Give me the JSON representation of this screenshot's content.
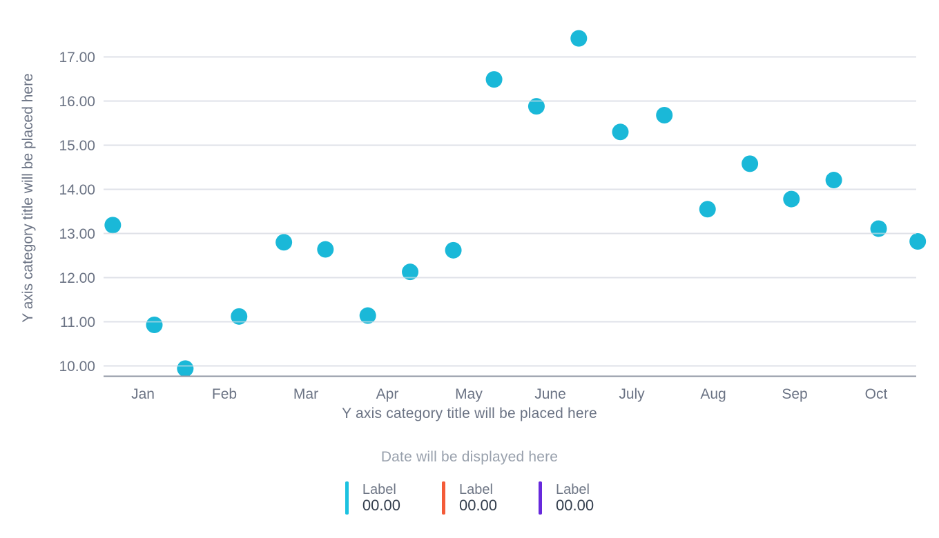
{
  "page": {
    "background": "#ffffff"
  },
  "chart_data": {
    "type": "scatter",
    "title": "",
    "x_axis": {
      "title": "Y axis category title will be placed here",
      "categories": [
        "Jan",
        "Feb",
        "Mar",
        "Apr",
        "May",
        "June",
        "July",
        "Aug",
        "Sep",
        "Oct"
      ],
      "grid": false
    },
    "y_axis": {
      "title": "Y axis category title will be placed here",
      "tick_values": [
        10,
        11,
        12,
        13,
        14,
        15,
        16,
        17
      ],
      "tick_labels": [
        "10.00",
        "11.00",
        "12.00",
        "13.00",
        "14.00",
        "15.00",
        "16.00",
        "17.00"
      ],
      "ylim": [
        9.75,
        17.65
      ],
      "grid": true
    },
    "series": [
      {
        "name": "Label",
        "color": "#1ab8d8",
        "points": [
          {
            "x": 0.63,
            "y": 13.19
          },
          {
            "x": 1.14,
            "y": 10.93
          },
          {
            "x": 1.52,
            "y": 9.94
          },
          {
            "x": 2.18,
            "y": 11.12
          },
          {
            "x": 2.73,
            "y": 12.8
          },
          {
            "x": 3.24,
            "y": 12.64
          },
          {
            "x": 3.76,
            "y": 11.14
          },
          {
            "x": 4.28,
            "y": 12.13
          },
          {
            "x": 4.81,
            "y": 12.62
          },
          {
            "x": 5.31,
            "y": 16.49
          },
          {
            "x": 5.83,
            "y": 15.88
          },
          {
            "x": 6.35,
            "y": 17.42
          },
          {
            "x": 6.86,
            "y": 15.3
          },
          {
            "x": 7.4,
            "y": 15.68
          },
          {
            "x": 7.93,
            "y": 13.55
          },
          {
            "x": 8.45,
            "y": 14.58
          },
          {
            "x": 8.96,
            "y": 13.78
          },
          {
            "x": 9.48,
            "y": 14.21
          },
          {
            "x": 10.03,
            "y": 13.11
          },
          {
            "x": 10.51,
            "y": 12.82
          }
        ]
      }
    ],
    "colors": {
      "point": "#1ab8d8",
      "gridline": "#dfe2e8",
      "axis_line": "#8f96a3",
      "tick_text": "#6b7384",
      "axis_title_text": "#6b7384"
    },
    "legend_position": "bottom"
  },
  "footer": {
    "date_text": "Date will be displayed here"
  },
  "legend": {
    "items": [
      {
        "label": "Label",
        "value": "00.00",
        "color": "#1cc2e0"
      },
      {
        "label": "Label",
        "value": "00.00",
        "color": "#f45b38"
      },
      {
        "label": "Label",
        "value": "00.00",
        "color": "#6729dc"
      }
    ]
  }
}
